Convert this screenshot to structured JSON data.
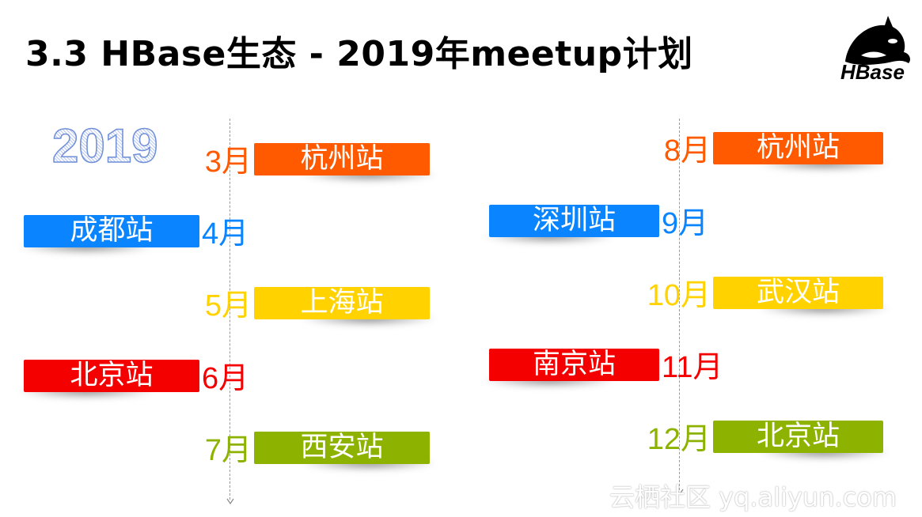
{
  "title": "3.3 HBase生态 - 2019年meetup计划",
  "year": "2019",
  "logo": {
    "text": "HBase",
    "icon": "orca-icon"
  },
  "watermark": "云栖社区 yq.aliyun.com",
  "colors": {
    "orange": "#ff5a00",
    "blue": "#0a84ff",
    "yellow": "#ffd200",
    "red": "#f50000",
    "green": "#8db300"
  },
  "timeline_left": [
    {
      "month": "3月",
      "station": "杭州站",
      "color": "#ff5a00",
      "side": "right"
    },
    {
      "month": "4月",
      "station": "成都站",
      "color": "#0a84ff",
      "side": "left"
    },
    {
      "month": "5月",
      "station": "上海站",
      "color": "#ffd200",
      "side": "right"
    },
    {
      "month": "6月",
      "station": "北京站",
      "color": "#f50000",
      "side": "left"
    },
    {
      "month": "7月",
      "station": "西安站",
      "color": "#8db300",
      "side": "right"
    }
  ],
  "timeline_right": [
    {
      "month": "8月",
      "station": "杭州站",
      "color": "#ff5a00",
      "side": "right"
    },
    {
      "month": "9月",
      "station": "深圳站",
      "color": "#0a84ff",
      "side": "left"
    },
    {
      "month": "10月",
      "station": "武汉站",
      "color": "#ffd200",
      "side": "right"
    },
    {
      "month": "11月",
      "station": "南京站",
      "color": "#f50000",
      "side": "left"
    },
    {
      "month": "12月",
      "station": "北京站",
      "color": "#8db300",
      "side": "right"
    }
  ]
}
